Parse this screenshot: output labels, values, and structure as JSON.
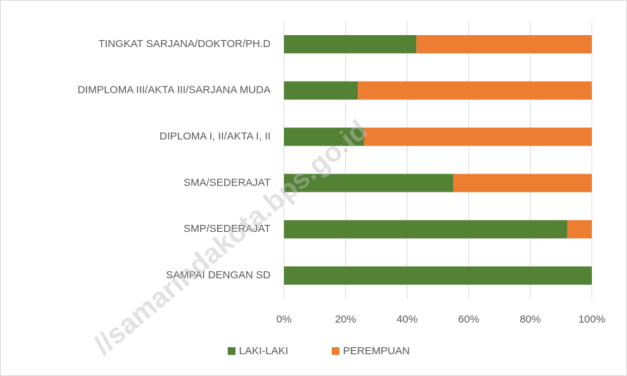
{
  "chart_data": {
    "type": "stacked_bar_horizontal",
    "categories": [
      "TINGKAT SARJANA/DOKTOR/PH.D",
      "DIMPLOMA III/AKTA III/SARJANA MUDA",
      "DIPLOMA I, II/AKTA I, II",
      "SMA/SEDERAJAT",
      "SMP/SEDERAJAT",
      "SAMPAI DENGAN SD"
    ],
    "series": [
      {
        "name": "LAKI-LAKI",
        "color": "#548235",
        "values": [
          43,
          24,
          26,
          55,
          92,
          100
        ]
      },
      {
        "name": "PEREMPUAN",
        "color": "#ed7d31",
        "values": [
          57,
          76,
          74,
          45,
          8,
          0
        ]
      }
    ],
    "xlim": [
      0,
      100
    ],
    "xticks": [
      {
        "value": 0,
        "label": "0%"
      },
      {
        "value": 20,
        "label": "20%"
      },
      {
        "value": 40,
        "label": "40%"
      },
      {
        "value": 60,
        "label": "60%"
      },
      {
        "value": 80,
        "label": "80%"
      },
      {
        "value": 100,
        "label": "100%"
      }
    ],
    "grid": true,
    "legend": "bottom",
    "watermark": "//samarindakota.bps.go.id"
  }
}
